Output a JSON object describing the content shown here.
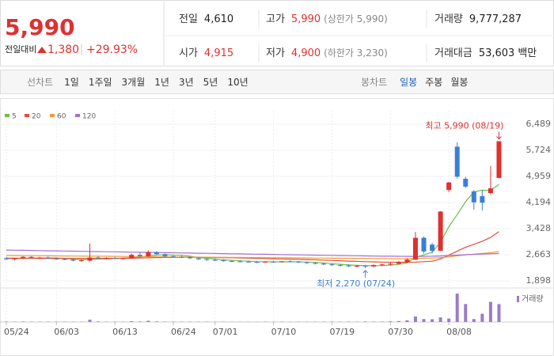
{
  "header": {
    "price": "5,990",
    "change_label": "전일대비",
    "change": "1,380",
    "change_pct": "+29.93%",
    "stats": [
      {
        "label": "전일",
        "value": "4,610",
        "color": "#222222"
      },
      {
        "label": "고가",
        "value": "5,990",
        "note": "(상한가 5,990)",
        "color": "#e0302f"
      },
      {
        "label": "거래량",
        "value": "9,777,287",
        "color": "#222222"
      },
      {
        "label": "시가",
        "value": "4,915",
        "color": "#e0302f"
      },
      {
        "label": "저가",
        "value": "4,900",
        "note": "(하한가 3,230)",
        "color": "#e0302f"
      },
      {
        "label": "거래대금",
        "value": "53,603",
        "unit": "백만",
        "color": "#222222"
      }
    ]
  },
  "toolbar": {
    "line_chart": "선차트",
    "periods": [
      "1일",
      "1주일",
      "3개월",
      "1년",
      "3년",
      "5년",
      "10년"
    ],
    "candle_chart": "봉차트",
    "candle_periods": [
      "일봉",
      "주봉",
      "월봉"
    ]
  },
  "chart_data": {
    "type": "candlestick",
    "categories": [
      "05/24",
      null,
      null,
      null,
      null,
      null,
      "06/03",
      null,
      null,
      null,
      null,
      null,
      null,
      "06/13",
      null,
      null,
      null,
      null,
      null,
      null,
      "06/24",
      null,
      null,
      null,
      null,
      "07/01",
      null,
      null,
      null,
      null,
      null,
      null,
      "07/10",
      null,
      null,
      null,
      null,
      null,
      null,
      "07/19",
      null,
      null,
      null,
      null,
      null,
      null,
      "07/30",
      null,
      null,
      null,
      null,
      null,
      null,
      "08/08",
      null,
      null,
      null,
      null,
      null,
      null
    ],
    "open": [
      2560,
      2530,
      2560,
      2600,
      2570,
      2580,
      2550,
      2540,
      2520,
      2490,
      2490,
      2580,
      2560,
      2570,
      2550,
      2560,
      2660,
      2620,
      2740,
      2680,
      2620,
      2600,
      2590,
      2560,
      2530,
      2510,
      2500,
      2480,
      2470,
      2460,
      2450,
      2440,
      2460,
      2450,
      2470,
      2460,
      2440,
      2420,
      2400,
      2380,
      2360,
      2350,
      2330,
      2340,
      2320,
      2360,
      2380,
      2400,
      2450,
      2520,
      3160,
      2960,
      2780,
      4560,
      5830,
      4890,
      4520,
      4380,
      4470,
      4915
    ],
    "high": [
      2600,
      2570,
      2620,
      2620,
      2600,
      2610,
      2580,
      2570,
      2550,
      2530,
      2990,
      2620,
      2590,
      2600,
      2580,
      2700,
      2720,
      2790,
      2770,
      2700,
      2650,
      2640,
      2620,
      2580,
      2560,
      2550,
      2530,
      2510,
      2500,
      2490,
      2480,
      2470,
      2490,
      2480,
      2500,
      2480,
      2460,
      2450,
      2430,
      2410,
      2390,
      2380,
      2360,
      2370,
      2380,
      2400,
      2430,
      2480,
      2560,
      3330,
      3200,
      3010,
      3940,
      4800,
      5960,
      4950,
      4560,
      4560,
      5260,
      5990
    ],
    "low": [
      2510,
      2500,
      2540,
      2550,
      2540,
      2540,
      2520,
      2500,
      2470,
      2460,
      2470,
      2540,
      2530,
      2540,
      2530,
      2550,
      2600,
      2600,
      2660,
      2600,
      2580,
      2570,
      2540,
      2510,
      2490,
      2480,
      2460,
      2450,
      2440,
      2430,
      2420,
      2420,
      2430,
      2430,
      2440,
      2420,
      2400,
      2380,
      2360,
      2340,
      2320,
      2300,
      2290,
      2270,
      2300,
      2330,
      2350,
      2380,
      2430,
      2510,
      2700,
      2700,
      2770,
      4500,
      4900,
      4620,
      3980,
      3960,
      4440,
      4900
    ],
    "close": [
      2530,
      2560,
      2600,
      2570,
      2580,
      2550,
      2540,
      2520,
      2490,
      2500,
      2580,
      2560,
      2570,
      2550,
      2560,
      2660,
      2620,
      2740,
      2680,
      2620,
      2600,
      2590,
      2560,
      2530,
      2510,
      2500,
      2480,
      2470,
      2460,
      2450,
      2440,
      2460,
      2450,
      2470,
      2460,
      2440,
      2420,
      2400,
      2380,
      2360,
      2350,
      2330,
      2340,
      2320,
      2360,
      2380,
      2400,
      2450,
      2520,
      3160,
      2760,
      2780,
      3930,
      4780,
      4950,
      4660,
      4200,
      4190,
      4610,
      5990
    ],
    "up_color": "#e0302f",
    "down_color": "#3a7fd5",
    "series": [
      {
        "name": "5",
        "color": "#6abf4b",
        "values": [
          2550,
          2550,
          2560,
          2565,
          2568,
          2570,
          2568,
          2552,
          2536,
          2520,
          2526,
          2538,
          2540,
          2552,
          2564,
          2580,
          2592,
          2630,
          2652,
          2664,
          2652,
          2646,
          2618,
          2580,
          2558,
          2538,
          2516,
          2498,
          2484,
          2472,
          2460,
          2456,
          2452,
          2454,
          2456,
          2456,
          2448,
          2438,
          2420,
          2400,
          2382,
          2364,
          2352,
          2340,
          2340,
          2346,
          2360,
          2382,
          2422,
          2582,
          2658,
          2734,
          3030,
          3486,
          3840,
          4220,
          4504,
          4556,
          4542,
          4730
        ]
      },
      {
        "name": "20",
        "color": "#e64b3c",
        "values": [
          2560,
          2560,
          2558,
          2558,
          2557,
          2556,
          2556,
          2555,
          2554,
          2553,
          2554,
          2555,
          2556,
          2557,
          2558,
          2562,
          2566,
          2574,
          2580,
          2584,
          2586,
          2588,
          2588,
          2586,
          2584,
          2582,
          2578,
          2574,
          2570,
          2564,
          2558,
          2552,
          2546,
          2540,
          2536,
          2530,
          2522,
          2514,
          2506,
          2496,
          2486,
          2476,
          2468,
          2460,
          2454,
          2448,
          2444,
          2442,
          2444,
          2448,
          2460,
          2474,
          2540,
          2650,
          2770,
          2880,
          2970,
          3060,
          3170,
          3340
        ]
      },
      {
        "name": "60",
        "color": "#f39c34",
        "values": [
          2640,
          2638,
          2636,
          2634,
          2632,
          2630,
          2628,
          2626,
          2624,
          2622,
          2620,
          2618,
          2616,
          2614,
          2612,
          2610,
          2608,
          2606,
          2604,
          2602,
          2600,
          2598,
          2596,
          2594,
          2592,
          2590,
          2588,
          2586,
          2584,
          2582,
          2580,
          2578,
          2576,
          2574,
          2572,
          2570,
          2568,
          2566,
          2564,
          2562,
          2560,
          2558,
          2556,
          2554,
          2552,
          2550,
          2548,
          2548,
          2550,
          2556,
          2560,
          2564,
          2580,
          2600,
          2630,
          2660,
          2680,
          2700,
          2720,
          2760
        ]
      },
      {
        "name": "120",
        "color": "#a36fd1",
        "values": [
          2800,
          2796,
          2792,
          2788,
          2784,
          2780,
          2776,
          2772,
          2768,
          2764,
          2760,
          2756,
          2752,
          2748,
          2744,
          2740,
          2736,
          2732,
          2728,
          2724,
          2720,
          2716,
          2712,
          2708,
          2704,
          2700,
          2696,
          2692,
          2688,
          2684,
          2680,
          2676,
          2672,
          2668,
          2664,
          2660,
          2656,
          2652,
          2648,
          2644,
          2640,
          2636,
          2632,
          2628,
          2624,
          2620,
          2618,
          2616,
          2614,
          2614,
          2616,
          2620,
          2628,
          2640,
          2652,
          2664,
          2674,
          2684,
          2692,
          2700
        ]
      }
    ],
    "volume": {
      "name": "거래량",
      "color": "#9b7bc8",
      "ylim": [
        0,
        16000000
      ],
      "values": [
        210000,
        180000,
        250000,
        160000,
        150000,
        170000,
        140000,
        130000,
        160000,
        120000,
        1250000,
        300000,
        180000,
        160000,
        150000,
        420000,
        260000,
        650000,
        310000,
        200000,
        170000,
        150000,
        140000,
        160000,
        130000,
        120000,
        140000,
        110000,
        120000,
        100000,
        110000,
        130000,
        120000,
        140000,
        110000,
        120000,
        130000,
        150000,
        160000,
        170000,
        140000,
        180000,
        150000,
        260000,
        200000,
        220000,
        350000,
        500000,
        900000,
        3000000,
        1600000,
        1500000,
        2500000,
        1900000,
        15500000,
        9800000,
        1600000,
        4500000,
        11000000,
        9777287
      ]
    },
    "ylim": [
      1898,
      6489
    ],
    "yticks": [
      {
        "value": 1898,
        "label": "1,898"
      },
      {
        "value": 2663,
        "label": "2,663"
      },
      {
        "value": 3428,
        "label": "3,428"
      },
      {
        "value": 4194,
        "label": "4,194"
      },
      {
        "value": 4959,
        "label": "4,959"
      },
      {
        "value": 5724,
        "label": "5,724"
      },
      {
        "value": 6489,
        "label": "6,489"
      }
    ],
    "grid": true,
    "high_label": "최고 5,990 (08/19)",
    "low_label": "최저 2,270 (07/24)"
  }
}
